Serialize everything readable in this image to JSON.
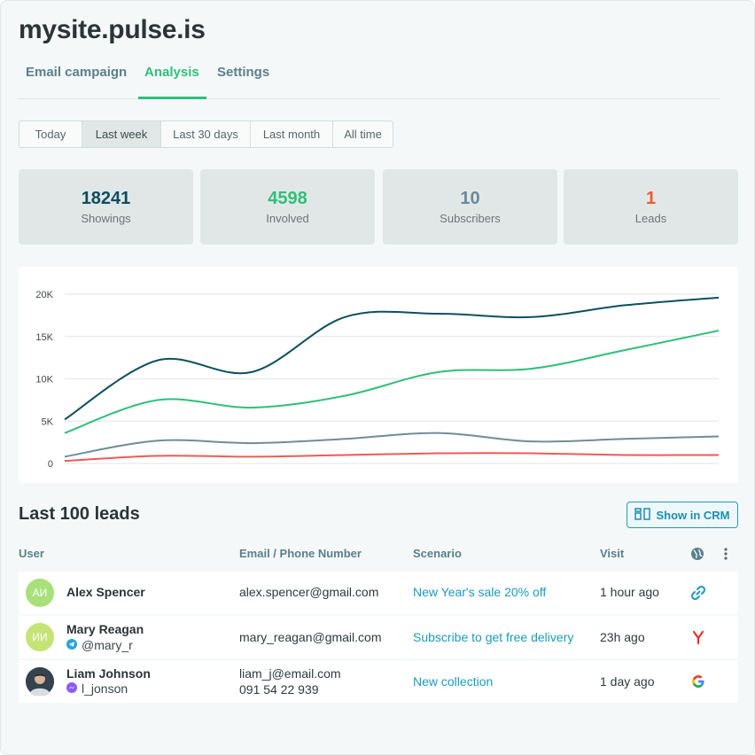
{
  "site": {
    "title": "mysite.pulse.is"
  },
  "tabs": [
    {
      "label": "Email campaign",
      "active": false
    },
    {
      "label": "Analysis",
      "active": true
    },
    {
      "label": "Settings",
      "active": false
    }
  ],
  "periods": [
    {
      "label": "Today",
      "selected": false
    },
    {
      "label": "Last week",
      "selected": true
    },
    {
      "label": "Last 30 days",
      "selected": false
    },
    {
      "label": "Last month",
      "selected": false
    },
    {
      "label": "All time",
      "selected": false
    }
  ],
  "stats": [
    {
      "value": "18241",
      "label": "Showings",
      "color": "#0f4d5c"
    },
    {
      "value": "4598",
      "label": "Involved",
      "color": "#2fbf7a"
    },
    {
      "value": "10",
      "label": "Subscribers",
      "color": "#6a8a99"
    },
    {
      "value": "1",
      "label": "Leads",
      "color": "#f0592f"
    }
  ],
  "chart_data": {
    "type": "line",
    "y_ticks": [
      "20K",
      "15K",
      "10K",
      "5K",
      "0"
    ],
    "ylim": [
      0,
      20000
    ],
    "grid": true,
    "x": [
      0,
      1,
      2,
      3,
      4,
      5,
      6,
      7
    ],
    "series": [
      {
        "color": "#0e5060",
        "values": [
          5200,
          12200,
          10800,
          17300,
          17700,
          17300,
          18700,
          19600
        ]
      },
      {
        "color": "#2fbf7a",
        "values": [
          3600,
          7500,
          6600,
          8000,
          10800,
          11200,
          13400,
          15700
        ]
      },
      {
        "color": "#6f8d9a",
        "values": [
          800,
          2700,
          2400,
          2900,
          3600,
          2600,
          2900,
          3200
        ]
      },
      {
        "color": "#ec5b57",
        "values": [
          300,
          900,
          800,
          1000,
          1200,
          1200,
          1000,
          1000
        ]
      }
    ]
  },
  "leads": {
    "title": "Last 100 leads",
    "crm_button": "Show in CRM",
    "columns": {
      "user": "User",
      "contact": "Email / Phone Number",
      "scenario": "Scenario",
      "visit": "Visit"
    },
    "rows": [
      {
        "initials": "АИ",
        "avatar_color": "#a8e07a",
        "name": "Alex Spencer",
        "handle": "",
        "handle_icon": "",
        "contact": [
          "alex.spencer@gmail.com"
        ],
        "scenario": "New Year's sale 20% off",
        "visit": "1 hour ago",
        "source_icon": "link-icon"
      },
      {
        "initials": "ИИ",
        "avatar_color": "#c6e376",
        "name": "Mary Reagan",
        "handle": "@mary_r",
        "handle_icon": "telegram-icon",
        "contact": [
          "mary_reagan@gmail.com"
        ],
        "scenario": "Subscribe to get free delivery",
        "visit": "23h ago",
        "source_icon": "yandex-icon"
      },
      {
        "initials": "",
        "avatar_color": "#3a4a55",
        "name": "Liam Johnson",
        "handle": "l_jonson",
        "handle_icon": "messenger-icon",
        "contact": [
          "liam_j@email.com",
          "091 54 22 939"
        ],
        "scenario": "New collection",
        "visit": "1 day ago",
        "source_icon": "google-icon"
      }
    ]
  }
}
